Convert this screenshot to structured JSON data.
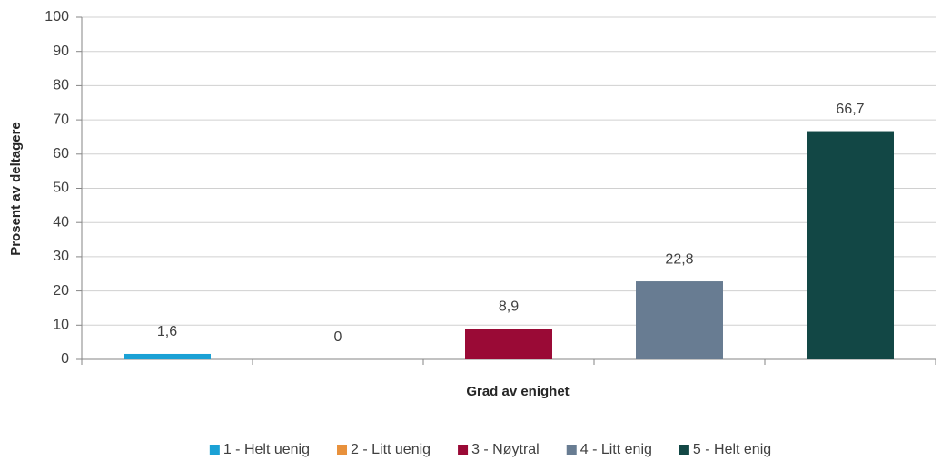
{
  "chart_data": {
    "type": "bar",
    "y_label": "Prosent av deltagere",
    "x_label": "Grad av enighet",
    "series": [
      {
        "name": "1 - Helt uenig",
        "color": "#1ba1d5",
        "values": [
          1.6
        ],
        "value_labels": [
          "1,6"
        ]
      },
      {
        "name": "2 - Litt uenig",
        "color": "#e8913c",
        "values": [
          0
        ]
      },
      {
        "name": "3 - Nøytral",
        "color": "#9a0a36",
        "values": [
          8.9
        ],
        "value_labels": [
          "8,9"
        ]
      },
      {
        "name": "4 - Litt enig",
        "color": "#687c92",
        "values": [
          22.8
        ],
        "value_labels": [
          "22,8"
        ]
      },
      {
        "name": "5 - Helt enig",
        "color": "#124745",
        "values": [
          66.7
        ],
        "value_labels": [
          "66,7"
        ]
      }
    ],
    "ylim": [
      0,
      100
    ],
    "yticks": [
      0,
      10,
      20,
      30,
      40,
      50,
      60,
      70,
      80,
      90,
      100
    ],
    "grid": true,
    "legend": "bottom"
  }
}
